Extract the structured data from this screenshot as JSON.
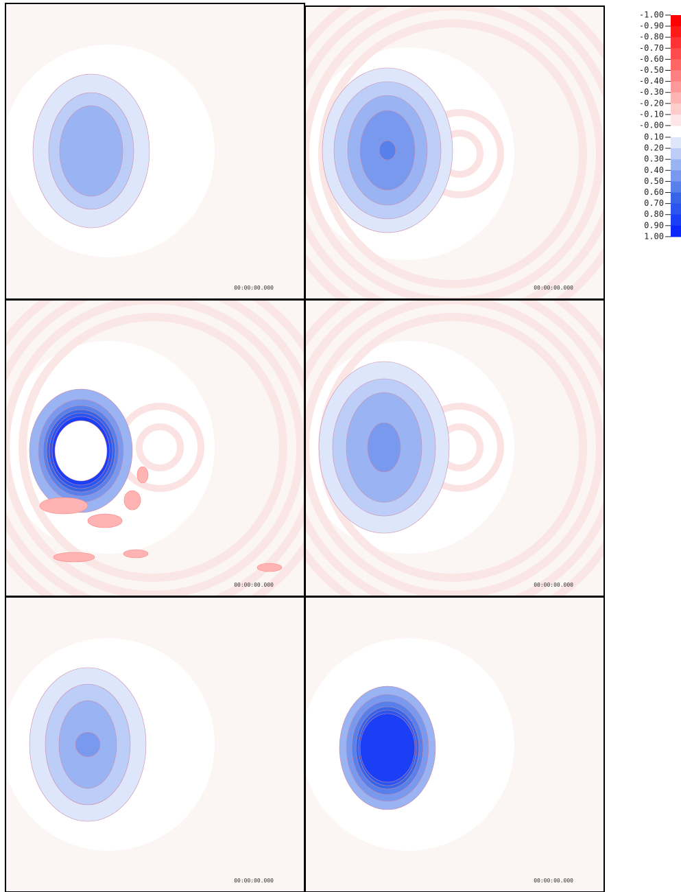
{
  "panels": [
    {
      "timestamp": "00:00:00.000"
    },
    {
      "timestamp": "00:00:00.000"
    },
    {
      "timestamp": "00:00:00.000"
    },
    {
      "timestamp": "00:00:00.000"
    },
    {
      "timestamp": "00:00:00.000"
    },
    {
      "timestamp": "00:00:00.000"
    }
  ],
  "colorbar": {
    "negative_ticks": [
      "-1.00",
      "-0.90",
      "-0.80",
      "-0.70",
      "-0.60",
      "-0.50",
      "-0.40",
      "-0.30",
      "-0.20",
      "-0.10",
      "-0.00"
    ],
    "negative_colors": [
      "#ff0000",
      "#ff1a1a",
      "#ff3333",
      "#ff4d4d",
      "#ff6666",
      "#ff8080",
      "#ff9999",
      "#ffb3b3",
      "#ffcccc",
      "#ffe6e6"
    ],
    "positive_ticks": [
      "0.10",
      "0.20",
      "0.30",
      "0.40",
      "0.50",
      "0.60",
      "0.70",
      "0.80",
      "0.90",
      "1.00"
    ],
    "positive_colors": [
      "#dde6fb",
      "#bccdf7",
      "#9ab3f3",
      "#7999ef",
      "#5780eb",
      "#3666e7",
      "#2a55ee",
      "#1a3ff4",
      "#0a28fa"
    ]
  }
}
